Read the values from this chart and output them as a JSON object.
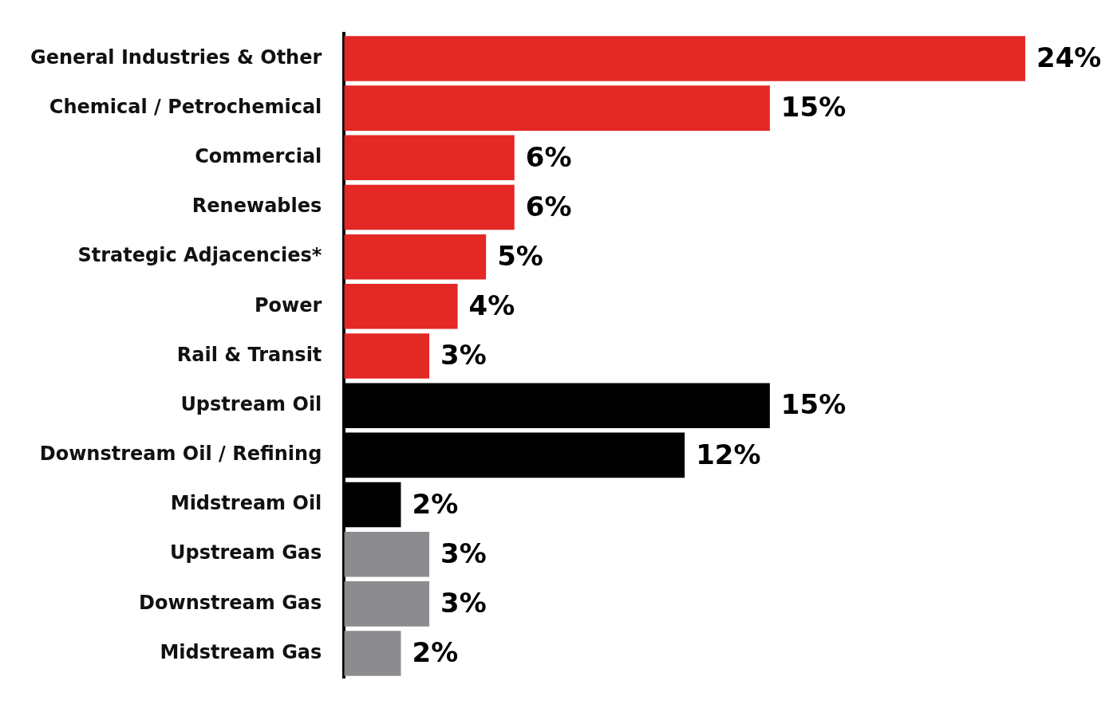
{
  "chart_data": {
    "type": "bar",
    "orientation": "horizontal",
    "categories": [
      "General Industries & Other",
      "Chemical / Petrochemical",
      "Commercial",
      "Renewables",
      "Strategic Adjacencies*",
      "Power",
      "Rail & Transit",
      "Upstream Oil",
      "Downstream Oil / Refining",
      "Midstream Oil",
      "Upstream Gas",
      "Downstream Gas",
      "Midstream Gas"
    ],
    "values": [
      24,
      15,
      6,
      6,
      5,
      4,
      3,
      15,
      12,
      2,
      3,
      3,
      2
    ],
    "value_labels": [
      "24%",
      "15%",
      "6%",
      "6%",
      "5%",
      "4%",
      "3%",
      "15%",
      "12%",
      "2%",
      "3%",
      "3%",
      "2%"
    ],
    "colors": [
      "#e32826",
      "#e32826",
      "#e32826",
      "#e32826",
      "#e32826",
      "#e32826",
      "#e32826",
      "#000000",
      "#000000",
      "#000000",
      "#8c8c90",
      "#8c8c90",
      "#8c8c90"
    ],
    "xlim": [
      0,
      24
    ],
    "tick_labels": "y",
    "grid": false,
    "legend": false
  }
}
